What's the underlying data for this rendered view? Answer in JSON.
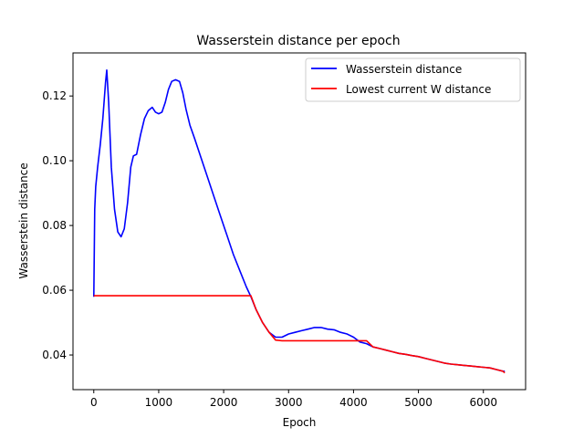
{
  "chart_data": {
    "type": "line",
    "title": "Wasserstein distance per epoch",
    "xlabel": "Epoch",
    "ylabel": "Wasserstein distance",
    "xlim": [
      -320,
      6650
    ],
    "ylim": [
      0.0293,
      0.1333
    ],
    "xticks": [
      0,
      1000,
      2000,
      3000,
      4000,
      5000,
      6000
    ],
    "yticks": [
      0.04,
      0.06,
      0.08,
      0.1,
      0.12
    ],
    "xtick_labels": [
      "0",
      "1000",
      "2000",
      "3000",
      "4000",
      "5000",
      "6000"
    ],
    "ytick_labels": [
      "0.04",
      "0.06",
      "0.08",
      "0.10",
      "0.12"
    ],
    "grid": false,
    "legend_position": "top-right",
    "series": [
      {
        "name": "Wasserstein distance",
        "color": "#0000ff",
        "x": [
          0,
          15,
          30,
          60,
          100,
          140,
          180,
          200,
          230,
          270,
          320,
          370,
          420,
          470,
          520,
          570,
          610,
          660,
          720,
          780,
          840,
          900,
          950,
          1000,
          1050,
          1100,
          1150,
          1200,
          1260,
          1320,
          1370,
          1420,
          1480,
          1550,
          1650,
          1750,
          1850,
          1950,
          2050,
          2150,
          2250,
          2350,
          2420,
          2500,
          2600,
          2700,
          2800,
          2900,
          3000,
          3100,
          3200,
          3300,
          3400,
          3500,
          3600,
          3700,
          3800,
          3900,
          4000,
          4100,
          4200,
          4300,
          4400,
          4500,
          4600,
          4700,
          4800,
          4900,
          5000,
          5100,
          5200,
          5300,
          5400,
          5500,
          5600,
          5700,
          5800,
          5900,
          6000,
          6100,
          6200,
          6300,
          6330
        ],
        "y": [
          0.058,
          0.085,
          0.092,
          0.098,
          0.105,
          0.113,
          0.124,
          0.128,
          0.118,
          0.098,
          0.085,
          0.078,
          0.0765,
          0.079,
          0.087,
          0.098,
          0.1015,
          0.102,
          0.108,
          0.113,
          0.1155,
          0.1165,
          0.115,
          0.1145,
          0.115,
          0.118,
          0.122,
          0.1245,
          0.125,
          0.1245,
          0.121,
          0.116,
          0.111,
          0.107,
          0.101,
          0.095,
          0.089,
          0.083,
          0.077,
          0.071,
          0.066,
          0.061,
          0.058,
          0.054,
          0.05,
          0.047,
          0.0455,
          0.0455,
          0.0465,
          0.047,
          0.0475,
          0.048,
          0.0485,
          0.0485,
          0.048,
          0.0478,
          0.047,
          0.0465,
          0.0455,
          0.044,
          0.0435,
          0.0425,
          0.042,
          0.0415,
          0.041,
          0.0405,
          0.0402,
          0.0398,
          0.0395,
          0.039,
          0.0385,
          0.038,
          0.0375,
          0.0372,
          0.037,
          0.0368,
          0.0366,
          0.0364,
          0.0362,
          0.036,
          0.0355,
          0.035,
          0.035
        ]
      },
      {
        "name": "Lowest current W distance",
        "color": "#ff0000",
        "x": [
          0,
          2420,
          2500,
          2600,
          2700,
          2800,
          2900,
          4200,
          4300,
          4400,
          4500,
          4600,
          4700,
          4800,
          4900,
          5000,
          5100,
          5200,
          5300,
          5400,
          5500,
          5600,
          5700,
          5800,
          5900,
          6000,
          6100,
          6200,
          6300,
          6330
        ],
        "y": [
          0.0583,
          0.0583,
          0.054,
          0.05,
          0.047,
          0.0446,
          0.0444,
          0.0444,
          0.0425,
          0.042,
          0.0415,
          0.041,
          0.0405,
          0.0402,
          0.0398,
          0.0395,
          0.039,
          0.0385,
          0.038,
          0.0375,
          0.0372,
          0.037,
          0.0368,
          0.0366,
          0.0364,
          0.0362,
          0.036,
          0.0355,
          0.035,
          0.0345
        ]
      }
    ]
  }
}
